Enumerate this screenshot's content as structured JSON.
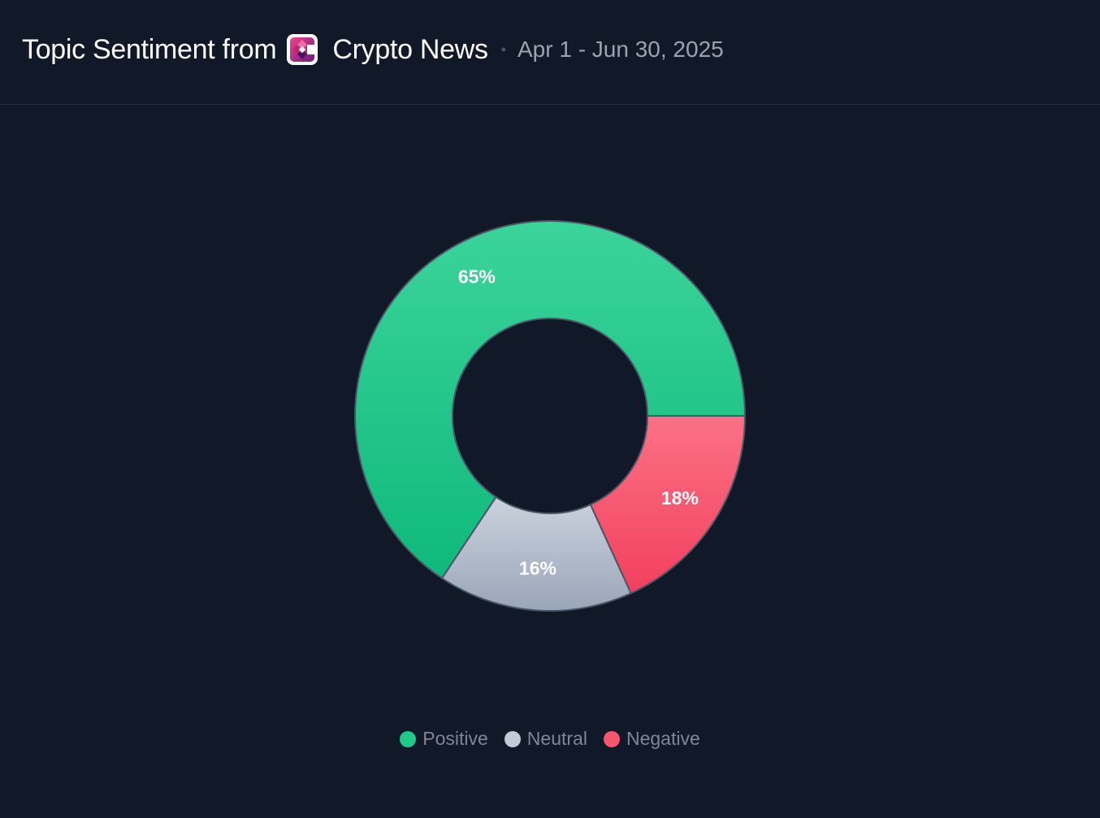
{
  "header": {
    "title_prefix": "Topic Sentiment from",
    "source_name": "Crypto News",
    "separator": "•",
    "date_range": "Apr 1 - Jun 30, 2025",
    "logo_icon": "crypto-news-logo-icon"
  },
  "colors": {
    "background": "#111827",
    "positive_top": "#3bd49b",
    "positive_bottom": "#0fb97b",
    "neutral_top": "#cbd2dd",
    "neutral_bottom": "#99a6b9",
    "negative_top": "#fb7185",
    "negative_bottom": "#f2405f",
    "slice_border": "#4b5563"
  },
  "chart_data": {
    "type": "pie",
    "subtype": "donut",
    "title": "",
    "categories": [
      "Positive",
      "Neutral",
      "Negative"
    ],
    "values": [
      65,
      16,
      18
    ],
    "labels": [
      "65%",
      "16%",
      "18%"
    ],
    "unit": "%",
    "legend_position": "bottom-center"
  },
  "legend": {
    "items": [
      {
        "label": "Positive",
        "color": "#1ec98a"
      },
      {
        "label": "Neutral",
        "color": "#c4cbd8"
      },
      {
        "label": "Negative",
        "color": "#f5566f"
      }
    ]
  }
}
